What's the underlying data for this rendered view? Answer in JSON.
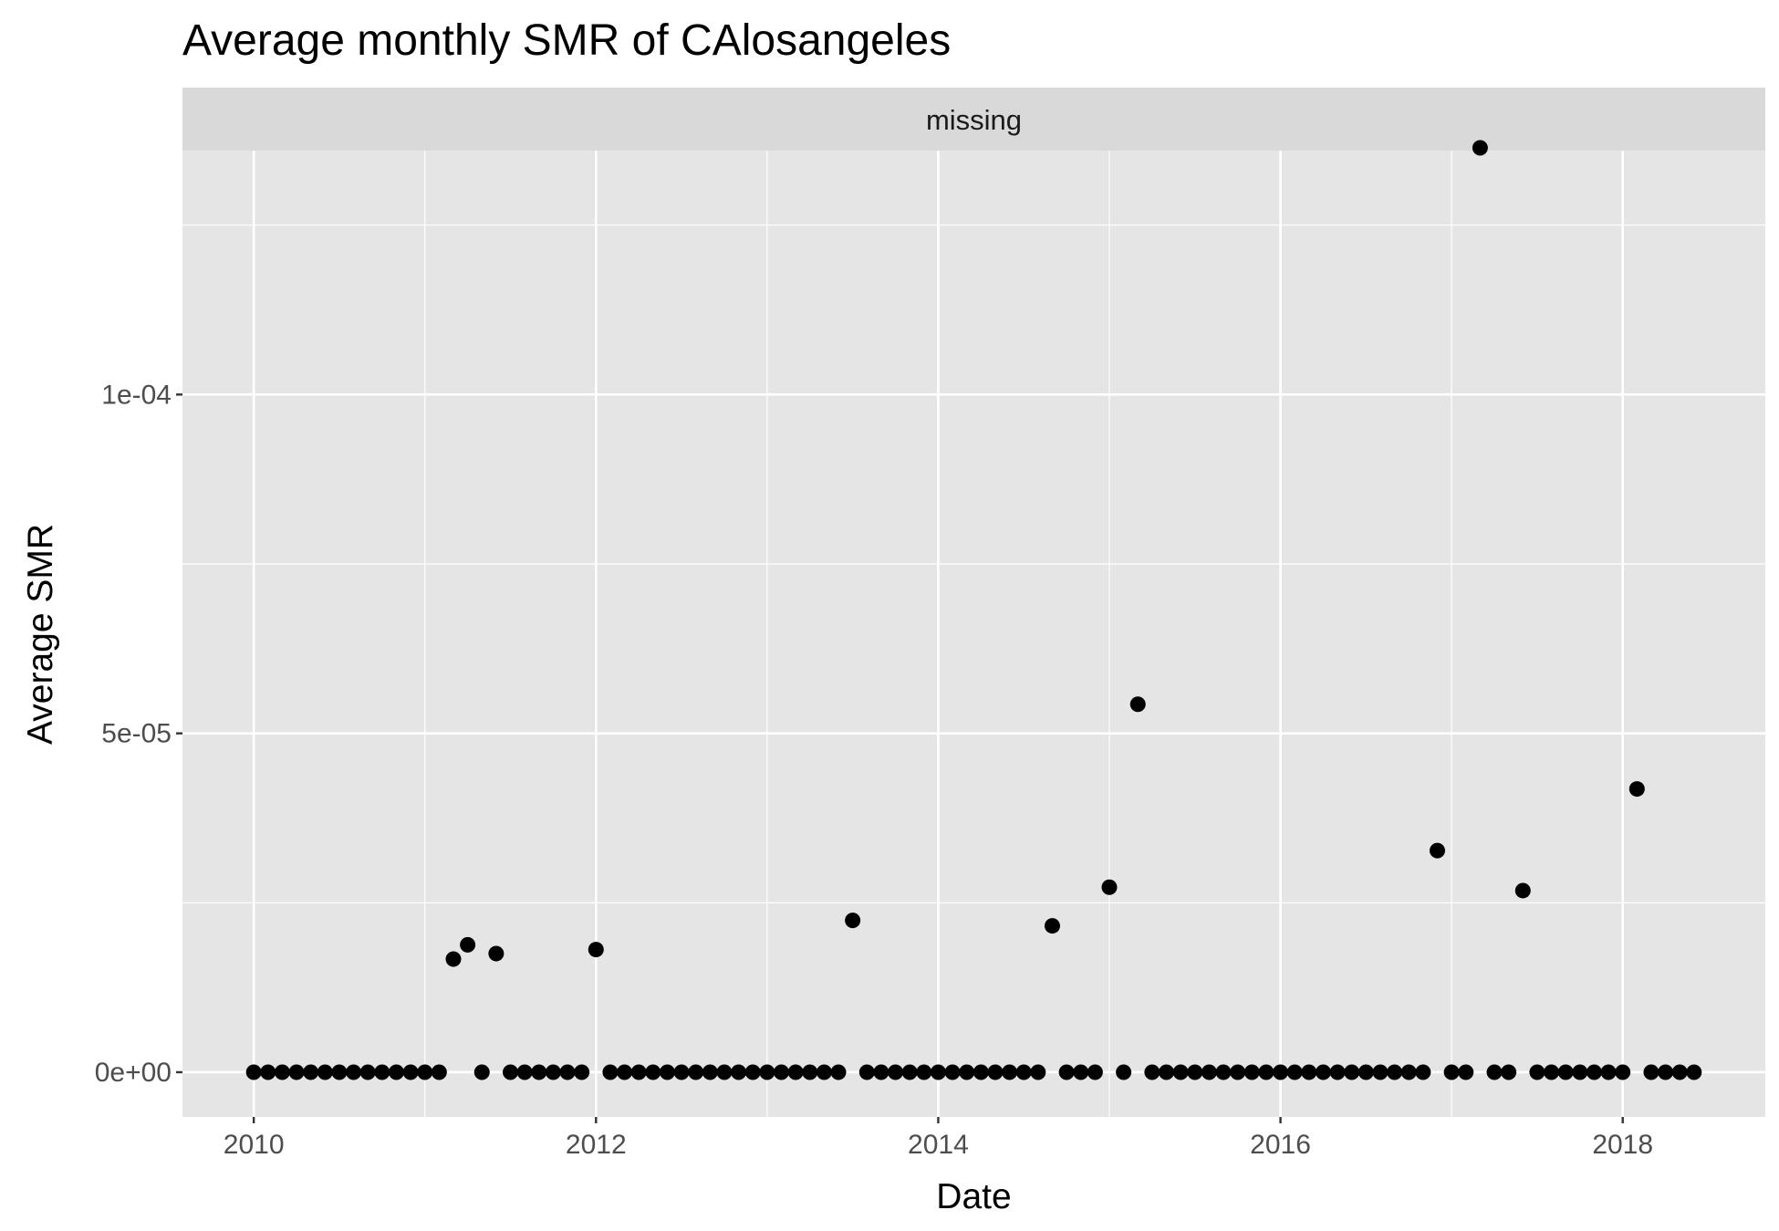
{
  "chart_data": {
    "type": "scatter",
    "title": "Average monthly SMR of CAlosangeles",
    "facet_label": "missing",
    "xlabel": "Date",
    "ylabel": "Average SMR",
    "x_ticks": [
      "2010",
      "2012",
      "2014",
      "2016",
      "2018"
    ],
    "y_ticks": [
      {
        "value": 0,
        "label": "0e+00"
      },
      {
        "value": 5e-05,
        "label": "5e-05"
      },
      {
        "value": 0.0001,
        "label": "1e-04"
      }
    ],
    "xlim": [
      "2009-08-01",
      "2018-11-01"
    ],
    "ylim": [
      -6.6e-06,
      0.000136
    ],
    "grid": true,
    "colors": {
      "panel": "#e5e5e5",
      "strip": "#d9d9d9",
      "grid": "#ffffff",
      "point": "#000000"
    },
    "points": [
      {
        "x": "2010-01",
        "y": 0
      },
      {
        "x": "2010-02",
        "y": 0
      },
      {
        "x": "2010-03",
        "y": 0
      },
      {
        "x": "2010-04",
        "y": 0
      },
      {
        "x": "2010-05",
        "y": 0
      },
      {
        "x": "2010-06",
        "y": 0
      },
      {
        "x": "2010-07",
        "y": 0
      },
      {
        "x": "2010-08",
        "y": 0
      },
      {
        "x": "2010-09",
        "y": 0
      },
      {
        "x": "2010-10",
        "y": 0
      },
      {
        "x": "2010-11",
        "y": 0
      },
      {
        "x": "2010-12",
        "y": 0
      },
      {
        "x": "2011-01",
        "y": 0
      },
      {
        "x": "2011-02",
        "y": 0
      },
      {
        "x": "2011-03",
        "y": 1.67e-05
      },
      {
        "x": "2011-04",
        "y": 1.88e-05
      },
      {
        "x": "2011-05",
        "y": 0
      },
      {
        "x": "2011-06",
        "y": 1.75e-05
      },
      {
        "x": "2011-07",
        "y": 0
      },
      {
        "x": "2011-08",
        "y": 0
      },
      {
        "x": "2011-09",
        "y": 0
      },
      {
        "x": "2011-10",
        "y": 0
      },
      {
        "x": "2011-11",
        "y": 0
      },
      {
        "x": "2011-12",
        "y": 0
      },
      {
        "x": "2012-01",
        "y": 1.81e-05
      },
      {
        "x": "2012-02",
        "y": 0
      },
      {
        "x": "2012-03",
        "y": 0
      },
      {
        "x": "2012-04",
        "y": 0
      },
      {
        "x": "2012-05",
        "y": 0
      },
      {
        "x": "2012-06",
        "y": 0
      },
      {
        "x": "2012-07",
        "y": 0
      },
      {
        "x": "2012-08",
        "y": 0
      },
      {
        "x": "2012-09",
        "y": 0
      },
      {
        "x": "2012-10",
        "y": 0
      },
      {
        "x": "2012-11",
        "y": 0
      },
      {
        "x": "2012-12",
        "y": 0
      },
      {
        "x": "2013-01",
        "y": 0
      },
      {
        "x": "2013-02",
        "y": 0
      },
      {
        "x": "2013-03",
        "y": 0
      },
      {
        "x": "2013-04",
        "y": 0
      },
      {
        "x": "2013-05",
        "y": 0
      },
      {
        "x": "2013-06",
        "y": 0
      },
      {
        "x": "2013-07",
        "y": 2.24e-05
      },
      {
        "x": "2013-08",
        "y": 0
      },
      {
        "x": "2013-09",
        "y": 0
      },
      {
        "x": "2013-10",
        "y": 0
      },
      {
        "x": "2013-11",
        "y": 0
      },
      {
        "x": "2013-12",
        "y": 0
      },
      {
        "x": "2014-01",
        "y": 0
      },
      {
        "x": "2014-02",
        "y": 0
      },
      {
        "x": "2014-03",
        "y": 0
      },
      {
        "x": "2014-04",
        "y": 0
      },
      {
        "x": "2014-05",
        "y": 0
      },
      {
        "x": "2014-06",
        "y": 0
      },
      {
        "x": "2014-07",
        "y": 0
      },
      {
        "x": "2014-08",
        "y": 0
      },
      {
        "x": "2014-09",
        "y": 2.16e-05
      },
      {
        "x": "2014-10",
        "y": 0
      },
      {
        "x": "2014-11",
        "y": 0
      },
      {
        "x": "2014-12",
        "y": 0
      },
      {
        "x": "2015-01",
        "y": 2.73e-05
      },
      {
        "x": "2015-02",
        "y": 0
      },
      {
        "x": "2015-03",
        "y": 5.43e-05
      },
      {
        "x": "2015-04",
        "y": 0
      },
      {
        "x": "2015-05",
        "y": 0
      },
      {
        "x": "2015-06",
        "y": 0
      },
      {
        "x": "2015-07",
        "y": 0
      },
      {
        "x": "2015-08",
        "y": 0
      },
      {
        "x": "2015-09",
        "y": 0
      },
      {
        "x": "2015-10",
        "y": 0
      },
      {
        "x": "2015-11",
        "y": 0
      },
      {
        "x": "2015-12",
        "y": 0
      },
      {
        "x": "2016-01",
        "y": 0
      },
      {
        "x": "2016-02",
        "y": 0
      },
      {
        "x": "2016-03",
        "y": 0
      },
      {
        "x": "2016-04",
        "y": 0
      },
      {
        "x": "2016-05",
        "y": 0
      },
      {
        "x": "2016-06",
        "y": 0
      },
      {
        "x": "2016-07",
        "y": 0
      },
      {
        "x": "2016-08",
        "y": 0
      },
      {
        "x": "2016-09",
        "y": 0
      },
      {
        "x": "2016-10",
        "y": 0
      },
      {
        "x": "2016-11",
        "y": 0
      },
      {
        "x": "2016-12",
        "y": 3.27e-05
      },
      {
        "x": "2017-01",
        "y": 0
      },
      {
        "x": "2017-02",
        "y": 0
      },
      {
        "x": "2017-03",
        "y": 0.0001364
      },
      {
        "x": "2017-04",
        "y": 0
      },
      {
        "x": "2017-05",
        "y": 0
      },
      {
        "x": "2017-06",
        "y": 2.68e-05
      },
      {
        "x": "2017-07",
        "y": 0
      },
      {
        "x": "2017-08",
        "y": 0
      },
      {
        "x": "2017-09",
        "y": 0
      },
      {
        "x": "2017-10",
        "y": 0
      },
      {
        "x": "2017-11",
        "y": 0
      },
      {
        "x": "2017-12",
        "y": 0
      },
      {
        "x": "2018-01",
        "y": 0
      },
      {
        "x": "2018-02",
        "y": 4.18e-05
      },
      {
        "x": "2018-03",
        "y": 0
      },
      {
        "x": "2018-04",
        "y": 0
      },
      {
        "x": "2018-05",
        "y": 0
      },
      {
        "x": "2018-06",
        "y": 0
      }
    ]
  }
}
